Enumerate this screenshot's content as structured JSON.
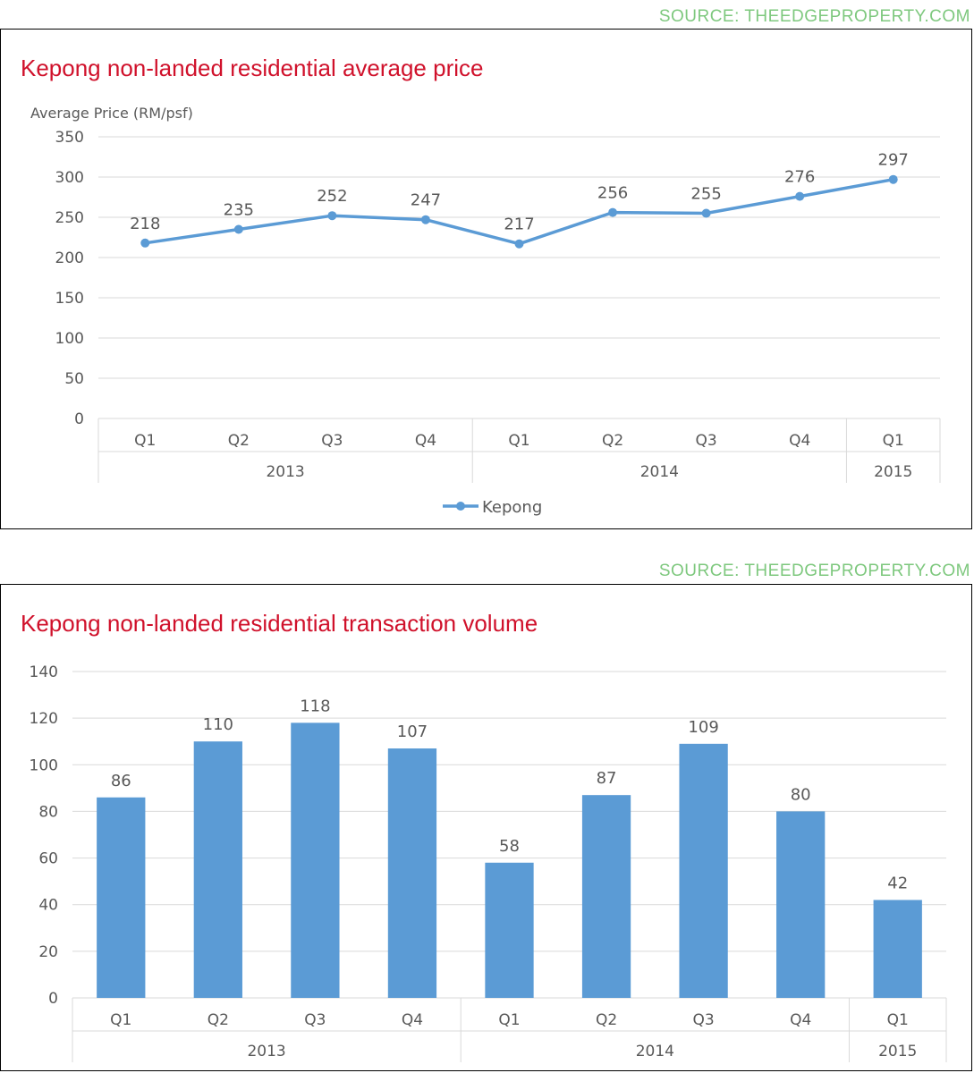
{
  "sources": [
    "SOURCE: THEEDGEPROPERTY.COM",
    "SOURCE: THEEDGEPROPERTY.COM"
  ],
  "chart_data": [
    {
      "type": "line",
      "title": "Kepong non-landed residential average price",
      "ylabel": "Average Price (RM/psf)",
      "ylim": [
        0,
        350
      ],
      "yticks": [
        0,
        50,
        100,
        150,
        200,
        250,
        300,
        350
      ],
      "categories": [
        "Q1",
        "Q2",
        "Q3",
        "Q4",
        "Q1",
        "Q2",
        "Q3",
        "Q4",
        "Q1"
      ],
      "groups": [
        {
          "label": "2013",
          "count": 4
        },
        {
          "label": "2014",
          "count": 4
        },
        {
          "label": "2015",
          "count": 1
        }
      ],
      "series": [
        {
          "name": "Kepong",
          "values": [
            218,
            235,
            252,
            247,
            217,
            256,
            255,
            276,
            297
          ]
        }
      ],
      "legend": "bottom",
      "grid": true,
      "color": "#5b9bd5"
    },
    {
      "type": "bar",
      "title": "Kepong non-landed residential transaction volume",
      "ylabel": "",
      "ylim": [
        0,
        140
      ],
      "yticks": [
        0,
        20,
        40,
        60,
        80,
        100,
        120,
        140
      ],
      "categories": [
        "Q1",
        "Q2",
        "Q3",
        "Q4",
        "Q1",
        "Q2",
        "Q3",
        "Q4",
        "Q1"
      ],
      "groups": [
        {
          "label": "2013",
          "count": 4
        },
        {
          "label": "2014",
          "count": 4
        },
        {
          "label": "2015",
          "count": 1
        }
      ],
      "series": [
        {
          "values": [
            86,
            110,
            118,
            107,
            58,
            87,
            109,
            80,
            42
          ]
        }
      ],
      "grid": true,
      "color": "#5b9bd5"
    }
  ]
}
